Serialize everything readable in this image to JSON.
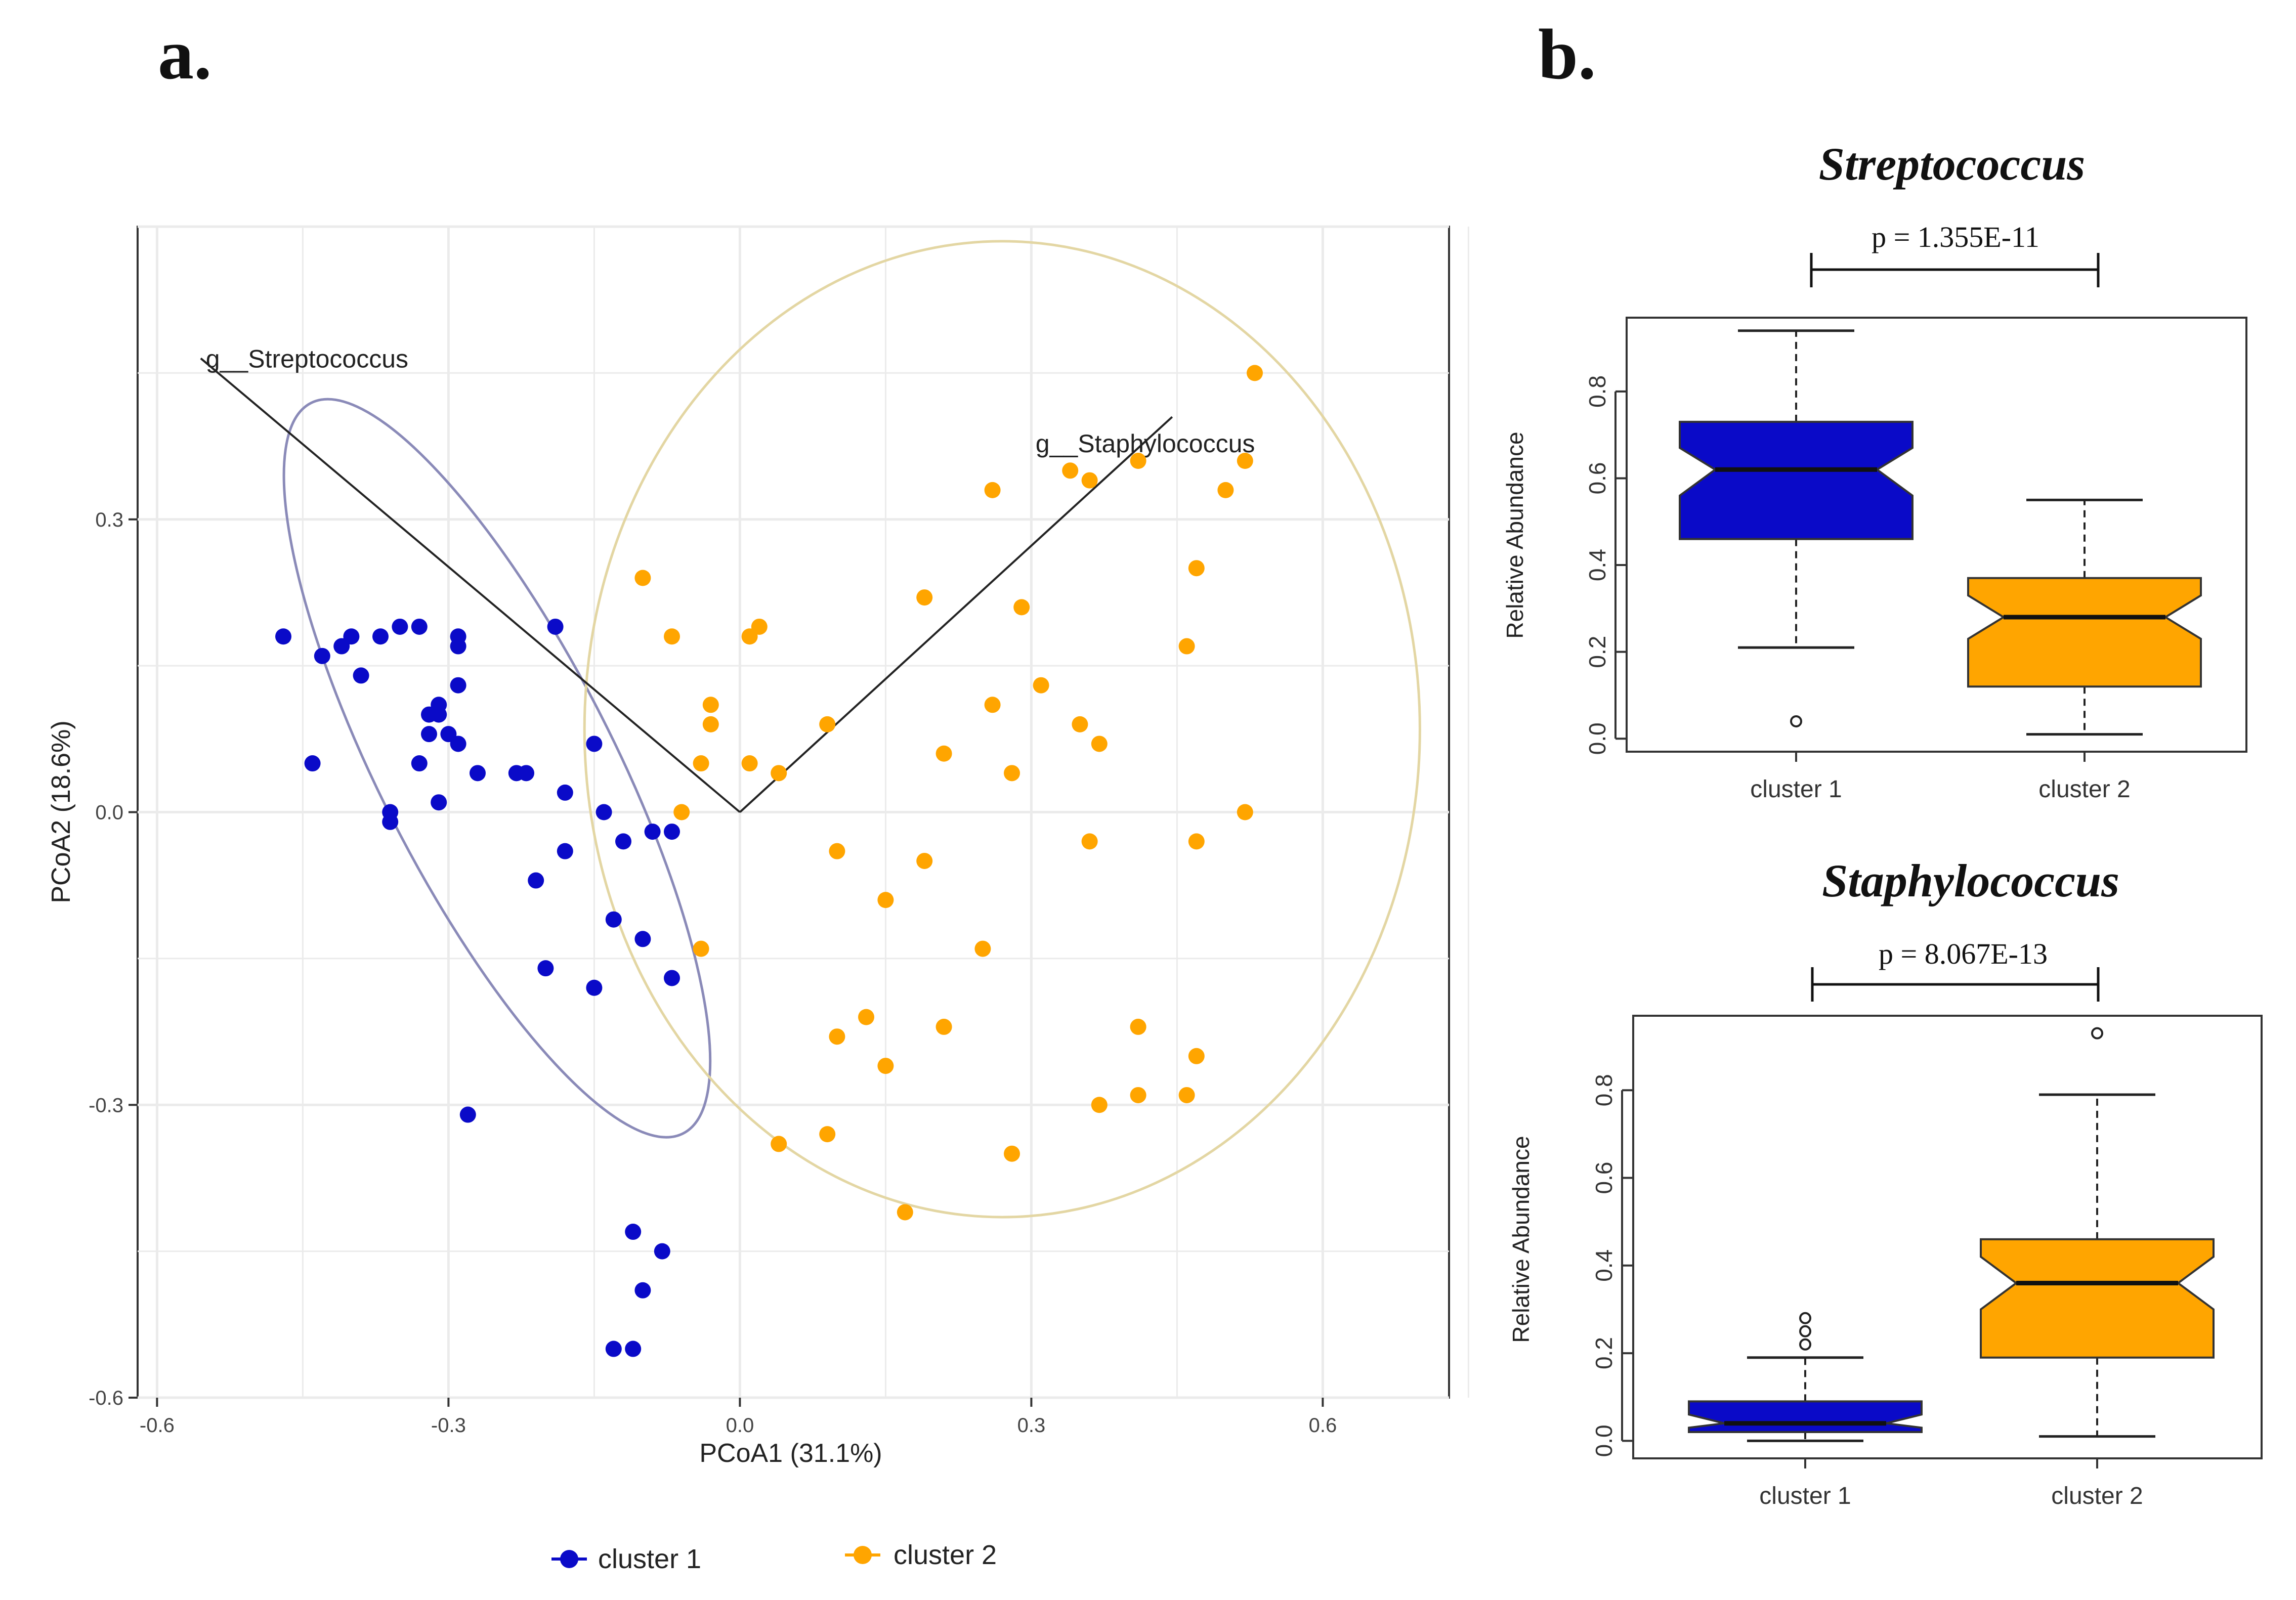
{
  "colors": {
    "cluster1": "#0a0ac8",
    "cluster2": "#ffa500",
    "ellipse1": "#8a8ab8",
    "ellipse2": "#e3d6a3",
    "grid": "#ebebeb"
  },
  "panel_a": {
    "label": "a."
  },
  "panel_b": {
    "label": "b."
  },
  "chart_data": [
    {
      "type": "scatter",
      "title": "",
      "xlabel": "PCoA1 (31.1%)",
      "ylabel": "PCoA2 (18.6%)",
      "xlim": [
        -0.62,
        0.73
      ],
      "ylim": [
        -0.6,
        0.6
      ],
      "xticks": [
        -0.6,
        -0.3,
        0.0,
        0.3,
        0.6
      ],
      "xtick_labels": [
        "-0.6",
        "-0.3",
        "0.0",
        "0.3",
        "0.6"
      ],
      "yticks": [
        -0.6,
        -0.3,
        0.0,
        0.3
      ],
      "ytick_labels": [
        "-0.6",
        "-0.3",
        "0.0",
        "0.3"
      ],
      "legend": {
        "position": "bottom",
        "entries": [
          "cluster 1",
          "cluster 2"
        ]
      },
      "biplot_arrows": [
        {
          "label": "g__Streptococcus",
          "x": -0.555,
          "y": 0.465
        },
        {
          "label": "g__Staphylococcus",
          "x": 0.445,
          "y": 0.405
        }
      ],
      "ellipses": [
        {
          "series": "cluster 1",
          "cx": -0.25,
          "cy": 0.045,
          "rx": 0.12,
          "ry": 0.42,
          "angle": -27
        },
        {
          "series": "cluster 2",
          "cx": 0.27,
          "cy": 0.085,
          "rx": 0.43,
          "ry": 0.5,
          "angle": 0
        }
      ],
      "series": [
        {
          "name": "cluster 1",
          "points": [
            [
              -0.47,
              0.18
            ],
            [
              -0.43,
              0.16
            ],
            [
              -0.41,
              0.17
            ],
            [
              -0.4,
              0.18
            ],
            [
              -0.39,
              0.14
            ],
            [
              -0.37,
              0.18
            ],
            [
              -0.35,
              0.19
            ],
            [
              -0.33,
              0.19
            ],
            [
              -0.29,
              0.18
            ],
            [
              -0.29,
              0.17
            ],
            [
              -0.29,
              0.13
            ],
            [
              -0.31,
              0.11
            ],
            [
              -0.32,
              0.1
            ],
            [
              -0.31,
              0.1
            ],
            [
              -0.3,
              0.08
            ],
            [
              -0.32,
              0.08
            ],
            [
              -0.29,
              0.07
            ],
            [
              -0.33,
              0.05
            ],
            [
              -0.27,
              0.04
            ],
            [
              -0.23,
              0.04
            ],
            [
              -0.22,
              0.04
            ],
            [
              -0.44,
              0.05
            ],
            [
              -0.31,
              0.01
            ],
            [
              -0.36,
              0.0
            ],
            [
              -0.36,
              -0.01
            ],
            [
              -0.19,
              0.19
            ],
            [
              -0.15,
              0.07
            ],
            [
              -0.18,
              0.02
            ],
            [
              -0.14,
              0.0
            ],
            [
              -0.09,
              -0.02
            ],
            [
              -0.07,
              -0.02
            ],
            [
              -0.12,
              -0.03
            ],
            [
              -0.18,
              -0.04
            ],
            [
              -0.21,
              -0.07
            ],
            [
              -0.13,
              -0.11
            ],
            [
              -0.1,
              -0.13
            ],
            [
              -0.07,
              -0.17
            ],
            [
              -0.2,
              -0.16
            ],
            [
              -0.15,
              -0.18
            ],
            [
              -0.28,
              -0.31
            ],
            [
              -0.11,
              -0.43
            ],
            [
              -0.08,
              -0.45
            ],
            [
              -0.1,
              -0.49
            ],
            [
              -0.13,
              -0.55
            ],
            [
              -0.11,
              -0.55
            ]
          ]
        },
        {
          "name": "cluster 2",
          "points": [
            [
              0.53,
              0.45
            ],
            [
              0.34,
              0.35
            ],
            [
              0.36,
              0.34
            ],
            [
              0.41,
              0.36
            ],
            [
              0.52,
              0.36
            ],
            [
              0.5,
              0.33
            ],
            [
              0.26,
              0.33
            ],
            [
              -0.1,
              0.24
            ],
            [
              0.47,
              0.25
            ],
            [
              0.19,
              0.22
            ],
            [
              0.29,
              0.21
            ],
            [
              -0.07,
              0.18
            ],
            [
              0.01,
              0.18
            ],
            [
              0.02,
              0.19
            ],
            [
              0.46,
              0.17
            ],
            [
              0.31,
              0.13
            ],
            [
              -0.03,
              0.11
            ],
            [
              0.26,
              0.11
            ],
            [
              0.09,
              0.09
            ],
            [
              -0.03,
              0.09
            ],
            [
              0.35,
              0.09
            ],
            [
              0.37,
              0.07
            ],
            [
              0.21,
              0.06
            ],
            [
              0.01,
              0.05
            ],
            [
              -0.04,
              0.05
            ],
            [
              0.04,
              0.04
            ],
            [
              0.28,
              0.04
            ],
            [
              0.52,
              0.0
            ],
            [
              -0.06,
              0.0
            ],
            [
              0.47,
              -0.03
            ],
            [
              0.36,
              -0.03
            ],
            [
              0.1,
              -0.04
            ],
            [
              0.19,
              -0.05
            ],
            [
              0.15,
              -0.09
            ],
            [
              0.25,
              -0.14
            ],
            [
              -0.04,
              -0.14
            ],
            [
              0.13,
              -0.21
            ],
            [
              0.21,
              -0.22
            ],
            [
              0.41,
              -0.22
            ],
            [
              0.1,
              -0.23
            ],
            [
              0.15,
              -0.26
            ],
            [
              0.47,
              -0.25
            ],
            [
              0.41,
              -0.29
            ],
            [
              0.37,
              -0.3
            ],
            [
              0.46,
              -0.29
            ],
            [
              0.04,
              -0.34
            ],
            [
              0.09,
              -0.33
            ],
            [
              0.28,
              -0.35
            ],
            [
              0.17,
              -0.41
            ]
          ]
        }
      ]
    },
    {
      "type": "box",
      "title": "Streptococcus",
      "p_value_label": "p = 1.355E-11",
      "ylabel": "Relative Abundance",
      "categories": [
        "cluster 1",
        "cluster 2"
      ],
      "ylim": [
        -0.03,
        0.97
      ],
      "yticks": [
        0.0,
        0.2,
        0.4,
        0.6,
        0.8
      ],
      "ytick_labels": [
        "0.0",
        "0.2",
        "0.4",
        "0.6",
        "0.8"
      ],
      "boxes": [
        {
          "name": "cluster 1",
          "whisker_low": 0.21,
          "q1": 0.46,
          "median": 0.62,
          "q3": 0.73,
          "whisker_high": 0.94,
          "notch_low": 0.56,
          "notch_high": 0.67,
          "outliers": [
            0.04
          ]
        },
        {
          "name": "cluster 2",
          "whisker_low": 0.01,
          "q1": 0.12,
          "median": 0.28,
          "q3": 0.37,
          "whisker_high": 0.55,
          "notch_low": 0.23,
          "notch_high": 0.33,
          "outliers": []
        }
      ]
    },
    {
      "type": "box",
      "title": "Staphylococcus",
      "p_value_label": "p = 8.067E-13",
      "ylabel": "Relative Abundance",
      "categories": [
        "cluster 1",
        "cluster 2"
      ],
      "ylim": [
        -0.04,
        0.97
      ],
      "yticks": [
        0.0,
        0.2,
        0.4,
        0.6,
        0.8
      ],
      "ytick_labels": [
        "0.0",
        "0.2",
        "0.4",
        "0.6",
        "0.8"
      ],
      "boxes": [
        {
          "name": "cluster 1",
          "whisker_low": 0.0,
          "q1": 0.02,
          "median": 0.04,
          "q3": 0.09,
          "whisker_high": 0.19,
          "notch_low": 0.03,
          "notch_high": 0.06,
          "outliers": [
            0.22,
            0.25,
            0.28
          ]
        },
        {
          "name": "cluster 2",
          "whisker_low": 0.01,
          "q1": 0.19,
          "median": 0.36,
          "q3": 0.46,
          "whisker_high": 0.79,
          "notch_low": 0.3,
          "notch_high": 0.42,
          "outliers": [
            0.93
          ]
        }
      ]
    }
  ]
}
